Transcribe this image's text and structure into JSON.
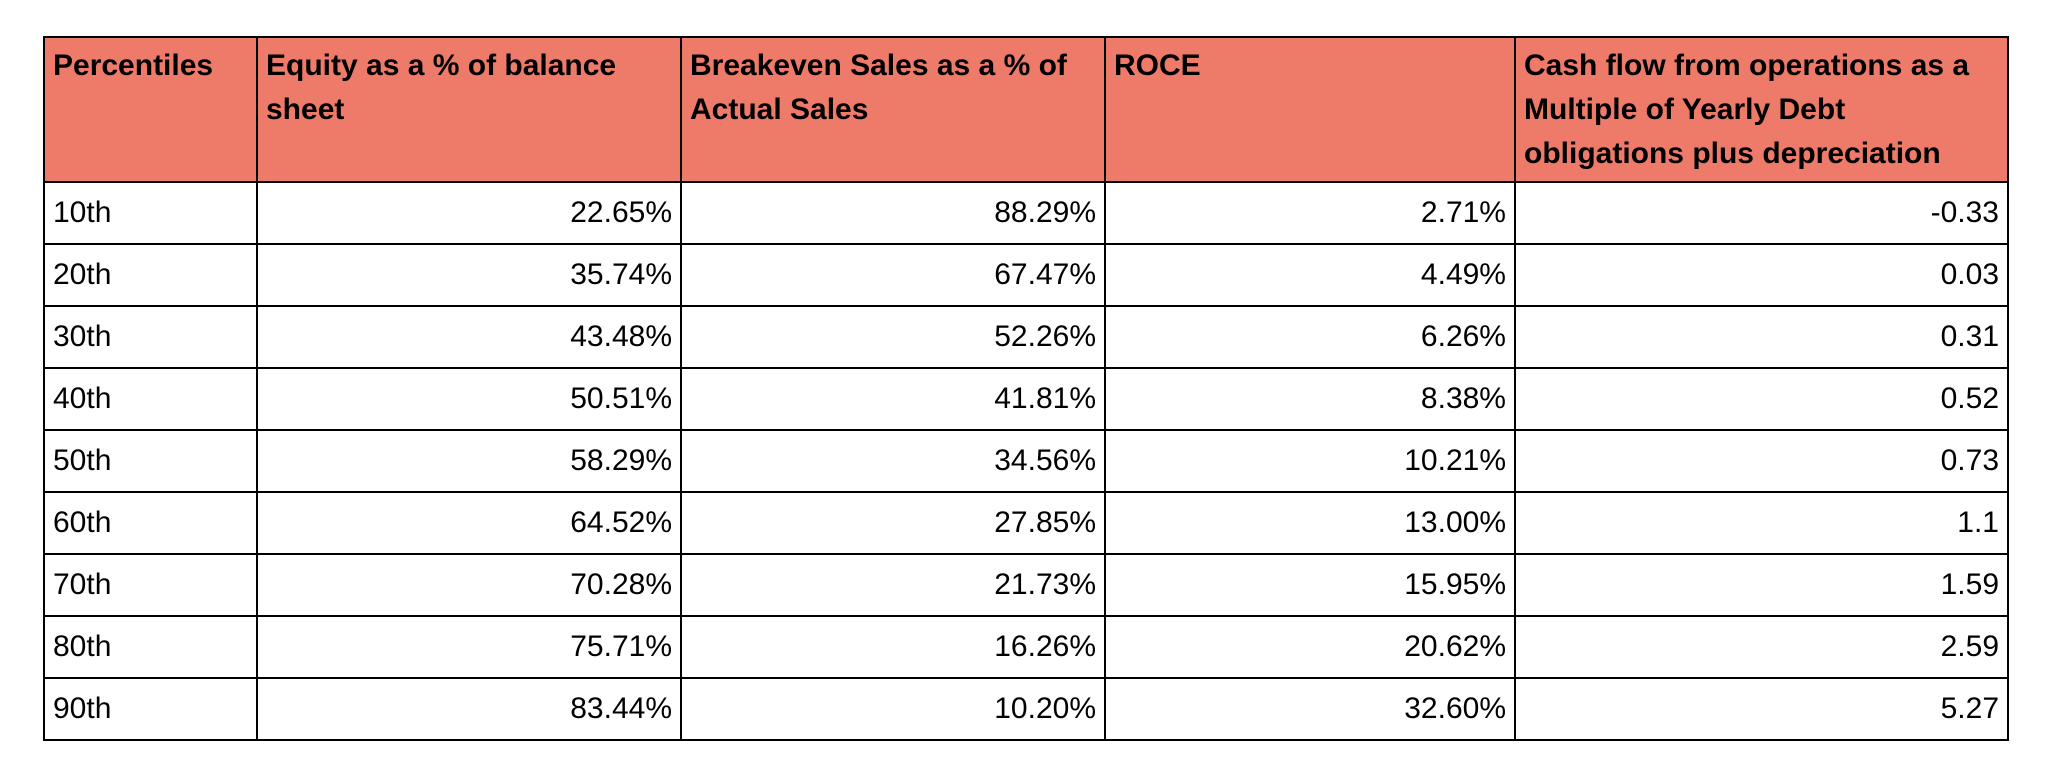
{
  "colors": {
    "header_fill": "#EE7B6A",
    "cell_fill": "#FFFFFF",
    "border": "#000000"
  },
  "chart_data": {
    "type": "table",
    "columns": [
      "Percentiles",
      "Equity as a % of balance sheet",
      "Breakeven Sales as a % of Actual Sales",
      "ROCE",
      "Cash flow from operations as a Multiple of Yearly Debt obligations plus depreciation"
    ],
    "rows": [
      [
        "10th",
        "22.65%",
        "88.29%",
        "2.71%",
        "-0.33"
      ],
      [
        "20th",
        "35.74%",
        "67.47%",
        "4.49%",
        "0.03"
      ],
      [
        "30th",
        "43.48%",
        "52.26%",
        "6.26%",
        "0.31"
      ],
      [
        "40th",
        "50.51%",
        "41.81%",
        "8.38%",
        "0.52"
      ],
      [
        "50th",
        "58.29%",
        "34.56%",
        "10.21%",
        "0.73"
      ],
      [
        "60th",
        "64.52%",
        "27.85%",
        "13.00%",
        "1.1"
      ],
      [
        "70th",
        "70.28%",
        "21.73%",
        "15.95%",
        "1.59"
      ],
      [
        "80th",
        "75.71%",
        "16.26%",
        "20.62%",
        "2.59"
      ],
      [
        "90th",
        "83.44%",
        "10.20%",
        "32.60%",
        "5.27"
      ]
    ]
  }
}
